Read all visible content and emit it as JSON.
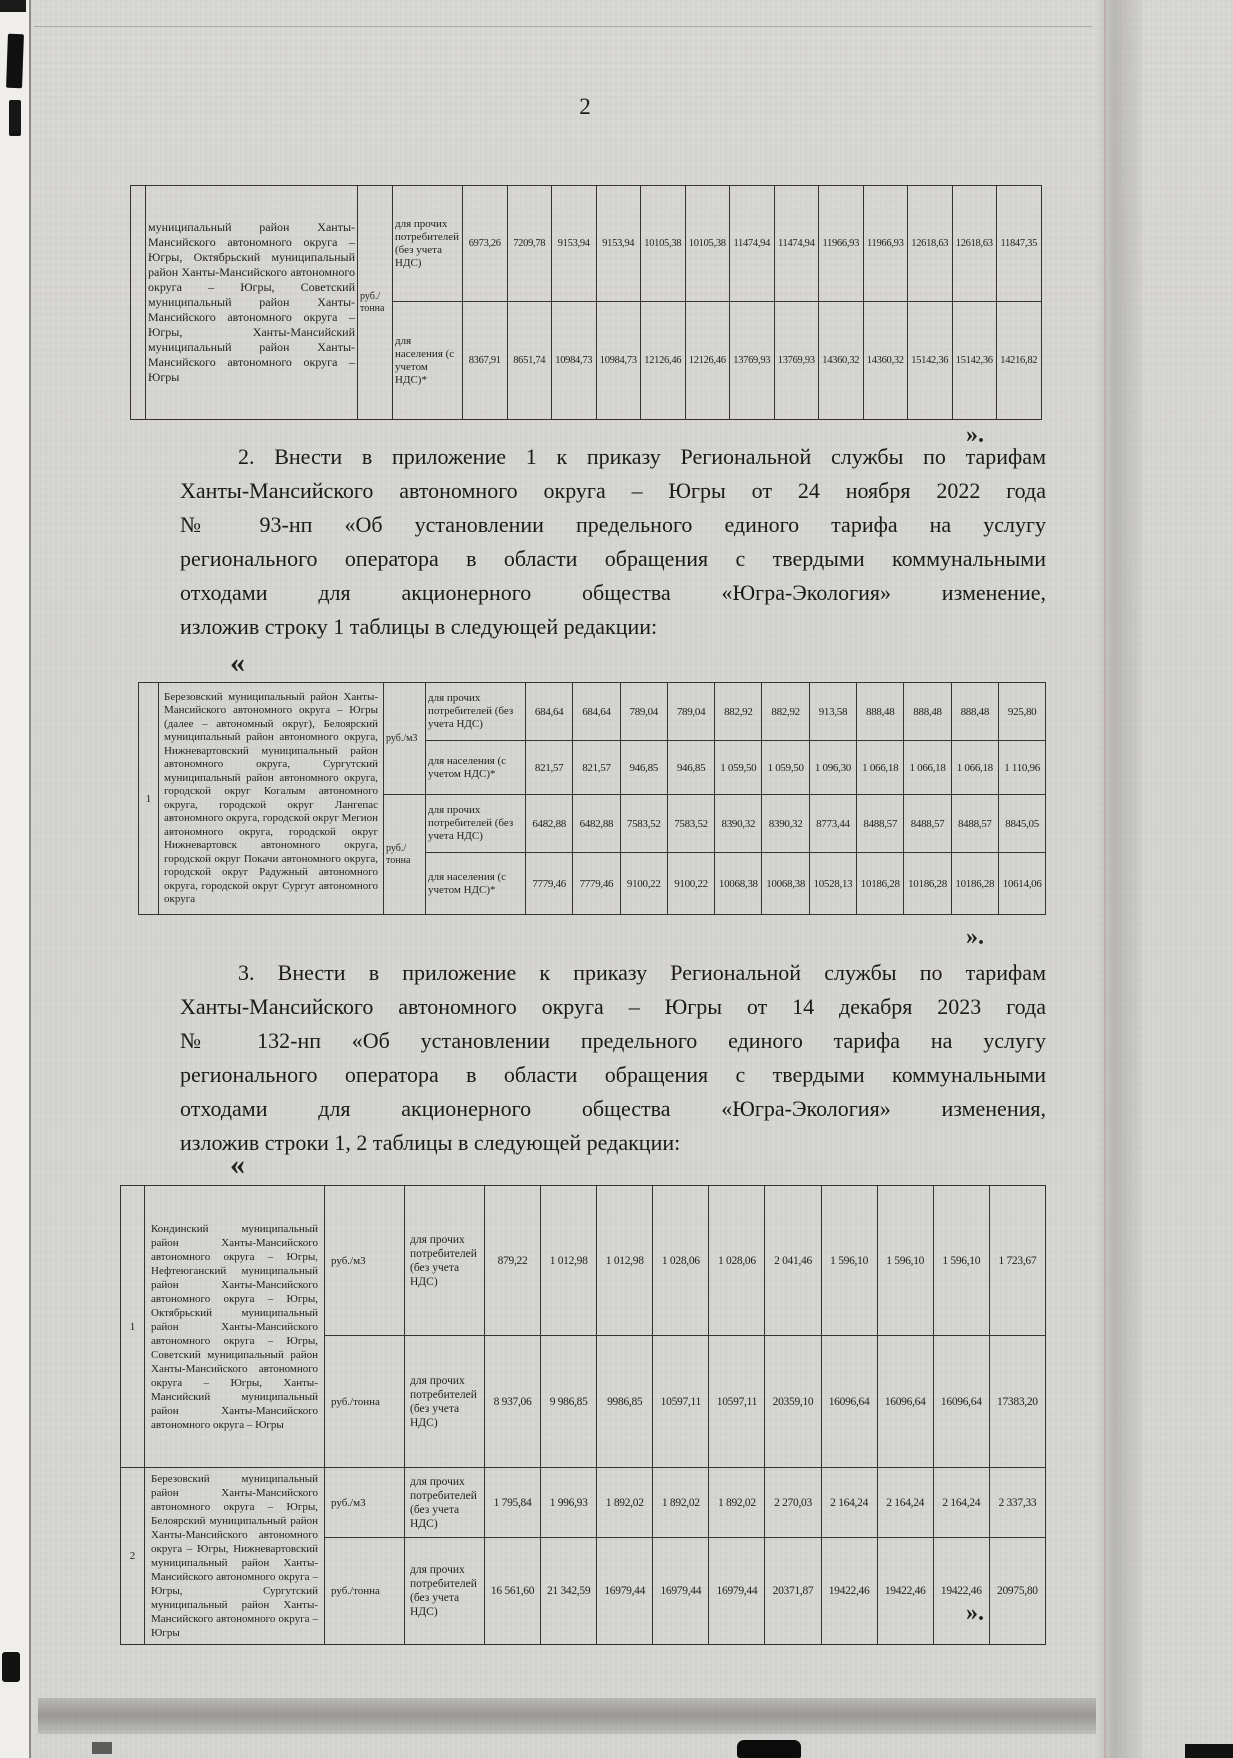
{
  "page": {
    "number": "2",
    "quote_open": "«",
    "quote_close": "»."
  },
  "paragraphs": {
    "p2": {
      "lines": [
        "2. Внести в приложение 1 к приказу Региональной службы по тарифам",
        "Ханты-Мансийского автономного округа – Югры от 24 ноября 2022 года",
        "№ 93-нп «Об установлении предельного единого тарифа на услугу",
        "регионального оператора в области обращения с твердыми коммунальными",
        "отходами для акционерного общества «Югра-Экология» изменение,",
        "изложив строку 1 таблицы в следующей редакции:"
      ]
    },
    "p3": {
      "lines": [
        "3. Внести в приложение к приказу Региональной службы по тарифам",
        "Ханты-Мансийского автономного округа – Югры от 14 декабря 2023 года",
        "№ 132-нп «Об установлении предельного единого тарифа на услугу",
        "регионального оператора в области обращения с твердыми коммунальными",
        "отходами для акционерного общества «Югра-Экология» изменения,",
        "изложив строки 1, 2 таблицы в следующей редакции:"
      ]
    }
  },
  "table1": {
    "row_no": "",
    "region": "муниципальный район Ханты-Мансийского автономного округа – Югры, Октябрьский муниципальный район Ханты-Мансийского автономного округа – Югры, Советский муниципальный район Ханты-Мансийского автономного округа – Югры, Ханты-Мансийский муниципальный район Ханты-Мансийского автономного округа – Югры",
    "unit": "руб./\nтонна",
    "rows": [
      {
        "label": "для прочих потребителей (без учета НДС)",
        "values": [
          "6973,26",
          "7209,78",
          "9153,94",
          "9153,94",
          "10105,38",
          "10105,38",
          "11474,94",
          "11474,94",
          "11966,93",
          "11966,93",
          "12618,63",
          "12618,63",
          "11847,35"
        ]
      },
      {
        "label": "для населения (с учетом НДС)*",
        "values": [
          "8367,91",
          "8651,74",
          "10984,73",
          "10984,73",
          "12126,46",
          "12126,46",
          "13769,93",
          "13769,93",
          "14360,32",
          "14360,32",
          "15142,36",
          "15142,36",
          "14216,82"
        ]
      }
    ]
  },
  "table2": {
    "row_no": "1",
    "region": "Березовский муниципальный район Ханты-Мансийского автономного округа – Югры (далее – автономный округ), Белоярский муниципальный район автономного округа, Нижневартовский муниципальный район автономного округа, Сургутский муниципальный район автономного округа, городской округ Когалым автономного округа, городской округ Лангепас автономного округа, городской округ Мегион автономного округа, городской округ Нижневартовск автономного округа, городской округ Покачи автономного округа, городской округ Радужный автономного округа, городской округ Сургут автономного округа",
    "unit_m3": "руб./м3",
    "unit_tonne": "руб./\nтонна",
    "rows": [
      {
        "label": "для прочих потребителей (без учета НДС)",
        "values": [
          "684,64",
          "684,64",
          "789,04",
          "789,04",
          "882,92",
          "882,92",
          "913,58",
          "888,48",
          "888,48",
          "888,48",
          "925,80"
        ]
      },
      {
        "label": "для населения (с учетом НДС)*",
        "values": [
          "821,57",
          "821,57",
          "946,85",
          "946,85",
          "1 059,50",
          "1 059,50",
          "1 096,30",
          "1 066,18",
          "1 066,18",
          "1 066,18",
          "1 110,96"
        ]
      },
      {
        "label": "для прочих потребителей (без учета НДС)",
        "values": [
          "6482,88",
          "6482,88",
          "7583,52",
          "7583,52",
          "8390,32",
          "8390,32",
          "8773,44",
          "8488,57",
          "8488,57",
          "8488,57",
          "8845,05"
        ]
      },
      {
        "label": "для населения (с учетом НДС)*",
        "values": [
          "7779,46",
          "7779,46",
          "9100,22",
          "9100,22",
          "10068,38",
          "10068,38",
          "10528,13",
          "10186,28",
          "10186,28",
          "10186,28",
          "10614,06"
        ]
      }
    ]
  },
  "table3": {
    "rows": [
      {
        "row_no": "1",
        "region": "Кондинский муниципальный район Ханты-Мансийского автономного округа – Югры, Нефтеюганский муниципальный район Ханты-Мансийского автономного округа – Югры, Октябрьский муниципальный район Ханты-Мансийского автономного округа – Югры, Советский муниципальный район Ханты-Мансийского автономного округа – Югры, Ханты-Мансийский муниципальный район Ханты-Мансийского автономного округа – Югры",
        "subrows": [
          {
            "unit": "руб./м3",
            "label": "для прочих потребителей (без учета НДС)",
            "values": [
              "879,22",
              "1 012,98",
              "1 012,98",
              "1 028,06",
              "1 028,06",
              "2 041,46",
              "1 596,10",
              "1 596,10",
              "1 596,10",
              "1 723,67"
            ]
          },
          {
            "unit": "руб./тонна",
            "label": "для прочих потребителей (без учета НДС)",
            "values": [
              "8 937,06",
              "9 986,85",
              "9986,85",
              "10597,11",
              "10597,11",
              "20359,10",
              "16096,64",
              "16096,64",
              "16096,64",
              "17383,20"
            ]
          }
        ]
      },
      {
        "row_no": "2",
        "region": "Березовский муниципальный район Ханты-Мансийского автономного округа – Югры, Белоярский муниципальный район Ханты-Мансийского автономного округа – Югры, Нижневартовский муниципальный район Ханты-Мансийского автономного округа – Югры, Сургутский муниципальный район Ханты-Мансийского автономного округа – Югры",
        "subrows": [
          {
            "unit": "руб./м3",
            "label": "для прочих потребителей (без учета НДС)",
            "values": [
              "1 795,84",
              "1 996,93",
              "1 892,02",
              "1 892,02",
              "1 892,02",
              "2 270,03",
              "2 164,24",
              "2 164,24",
              "2 164,24",
              "2 337,33"
            ]
          },
          {
            "unit": "руб./тонна",
            "label": "для прочих потребителей (без учета НДС)",
            "values": [
              "16 561,60",
              "21 342,59",
              "16979,44",
              "16979,44",
              "16979,44",
              "20371,87",
              "19422,46",
              "19422,46",
              "19422,46",
              "20975,80"
            ]
          }
        ]
      }
    ]
  }
}
